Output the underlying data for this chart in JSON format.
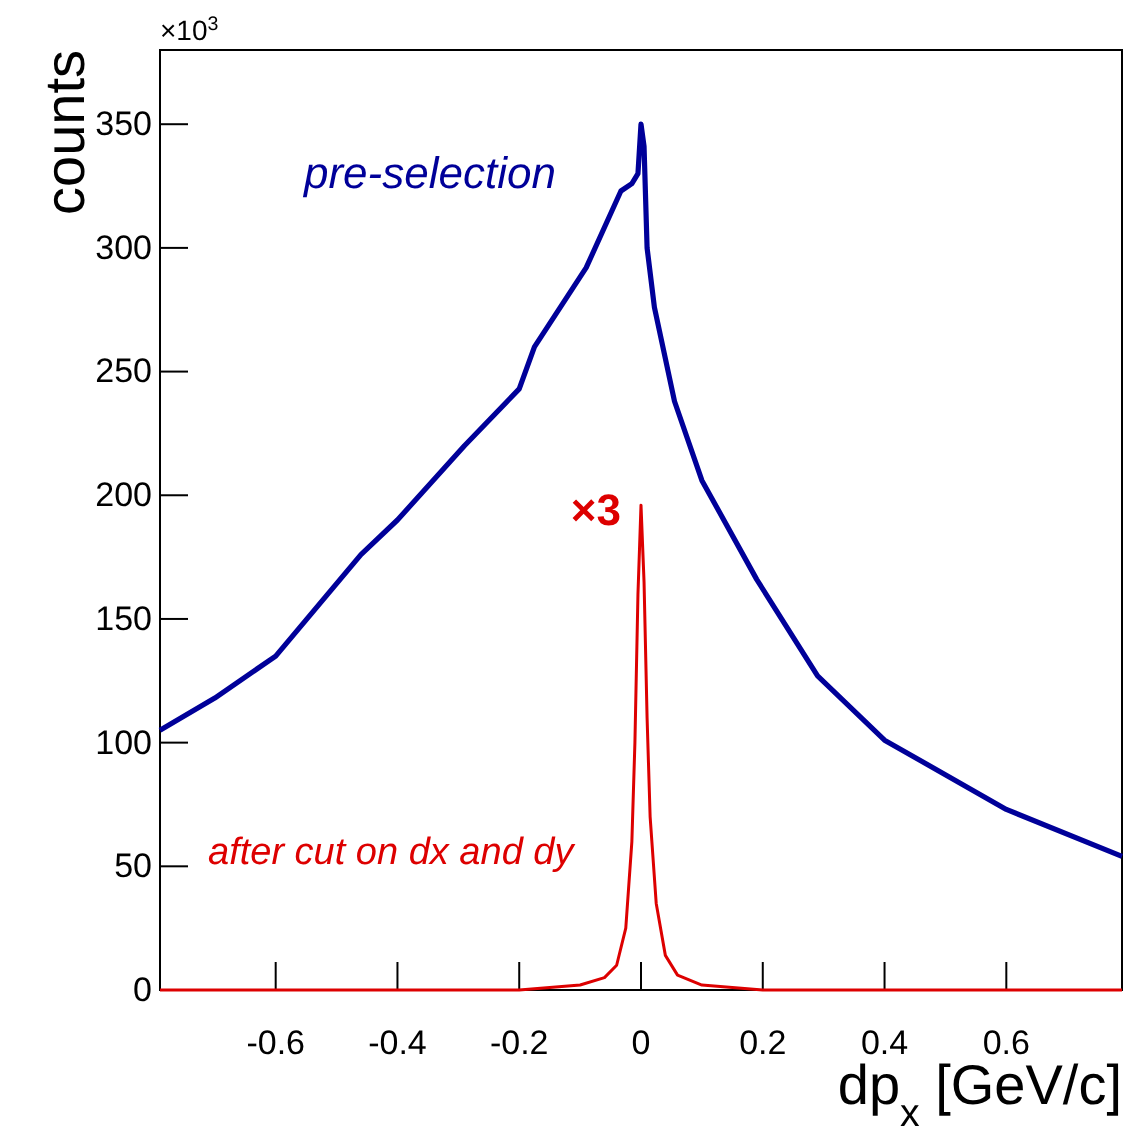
{
  "chart_data": {
    "type": "line",
    "xlabel": "dp$_{x}$ [GeV/c]",
    "ylabel": "counts",
    "xlim": [
      -0.79,
      0.79
    ],
    "ylim": [
      0,
      380
    ],
    "xticks": [
      -0.6,
      -0.4,
      -0.2,
      0,
      0.2,
      0.4,
      0.6
    ],
    "yticks": [
      0,
      50,
      100,
      150,
      200,
      250,
      300,
      350
    ],
    "grid": false,
    "legend": false,
    "line_style": "solid",
    "marker": "none",
    "annotations": [
      "×10$^{3}$",
      {
        "text": "×3",
        "x": 0,
        "y": 196
      }
    ],
    "series": [
      {
        "name": "pre-selection",
        "color": "#000099",
        "x": [
          -0.79,
          -0.7,
          -0.6,
          -0.46,
          -0.4,
          -0.29,
          -0.2,
          -0.175,
          -0.09,
          -0.033,
          -0.015,
          -0.005,
          0,
          0.005,
          0.01,
          0.022,
          0.055,
          0.1,
          0.19,
          0.29,
          0.4,
          0.6,
          0.79
        ],
        "values": [
          105,
          118,
          135,
          176,
          190,
          220,
          243,
          260,
          292,
          323,
          326,
          330,
          350,
          341,
          300,
          276,
          238,
          206,
          166,
          127,
          101,
          73,
          54
        ]
      },
      {
        "name": "after cut on dx and dy",
        "color": "#dd0000",
        "x": [
          -0.79,
          -0.2,
          -0.1,
          -0.06,
          -0.04,
          -0.025,
          -0.015,
          -0.01,
          -0.005,
          0,
          0.005,
          0.01,
          0.015,
          0.025,
          0.04,
          0.06,
          0.1,
          0.2,
          0.79
        ],
        "values": [
          0,
          0,
          2,
          5,
          10,
          25,
          60,
          100,
          160,
          196,
          165,
          110,
          70,
          35,
          14,
          6,
          2,
          0,
          0
        ]
      }
    ]
  }
}
